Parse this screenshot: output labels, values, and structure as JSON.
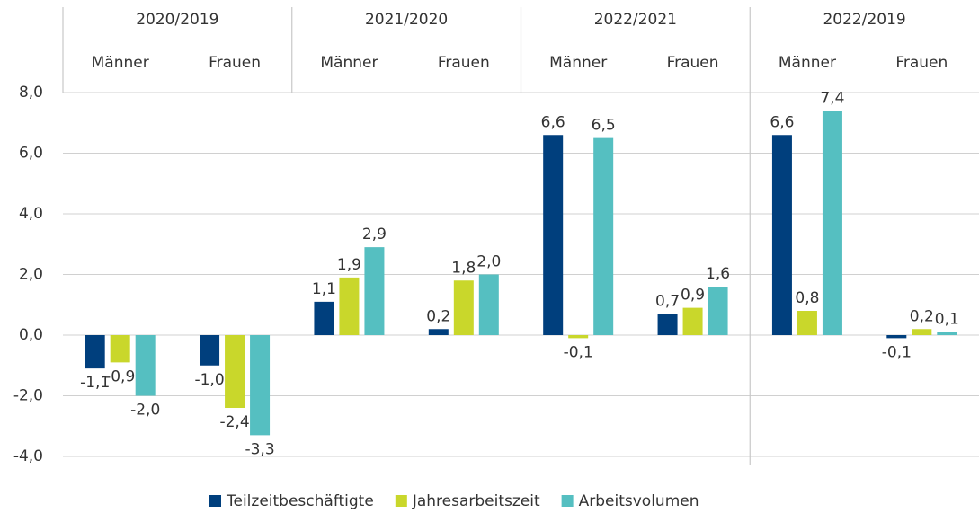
{
  "chart_data": {
    "type": "bar",
    "groups": [
      "2020/2019",
      "2021/2020",
      "2022/2021",
      "2022/2019"
    ],
    "categories": [
      "Männer",
      "Frauen",
      "Männer",
      "Frauen",
      "Männer",
      "Frauen",
      "Männer",
      "Frauen"
    ],
    "series": [
      {
        "name": "Teilzeitbeschäftigte",
        "color": "#003f7d",
        "values": [
          -1.1,
          -1.0,
          1.1,
          0.2,
          6.6,
          0.7,
          6.6,
          -0.1
        ],
        "value_labels": [
          "-1,1",
          "-1,0",
          "1,1",
          "0,2",
          "6,6",
          "0,7",
          "6,6",
          "-0,1"
        ]
      },
      {
        "name": "Jahresarbeitszeit",
        "color": "#c9d72b",
        "values": [
          -0.9,
          -2.4,
          1.9,
          1.8,
          -0.1,
          0.9,
          0.8,
          0.2
        ],
        "value_labels": [
          "-0,9",
          "-2,4",
          "1,9",
          "1,8",
          "-0,1",
          "0,9",
          "0,8",
          "0,2"
        ]
      },
      {
        "name": "Arbeitsvolumen",
        "color": "#55bfc1",
        "values": [
          -2.0,
          -3.3,
          2.9,
          2.0,
          6.5,
          1.6,
          7.4,
          0.1
        ],
        "value_labels": [
          "-2,0",
          "-3,3",
          "2,9",
          "2,0",
          "6,5",
          "1,6",
          "7,4",
          "0,1"
        ]
      }
    ],
    "ylim": [
      -4,
      8
    ],
    "yticks": [
      {
        "value": -4,
        "label": "-4,0"
      },
      {
        "value": -2,
        "label": "-2,0"
      },
      {
        "value": 0,
        "label": "0,0"
      },
      {
        "value": 2,
        "label": "2,0"
      },
      {
        "value": 4,
        "label": "4,0"
      },
      {
        "value": 6,
        "label": "6,0"
      },
      {
        "value": 8,
        "label": "8,0"
      }
    ],
    "grid": true
  }
}
